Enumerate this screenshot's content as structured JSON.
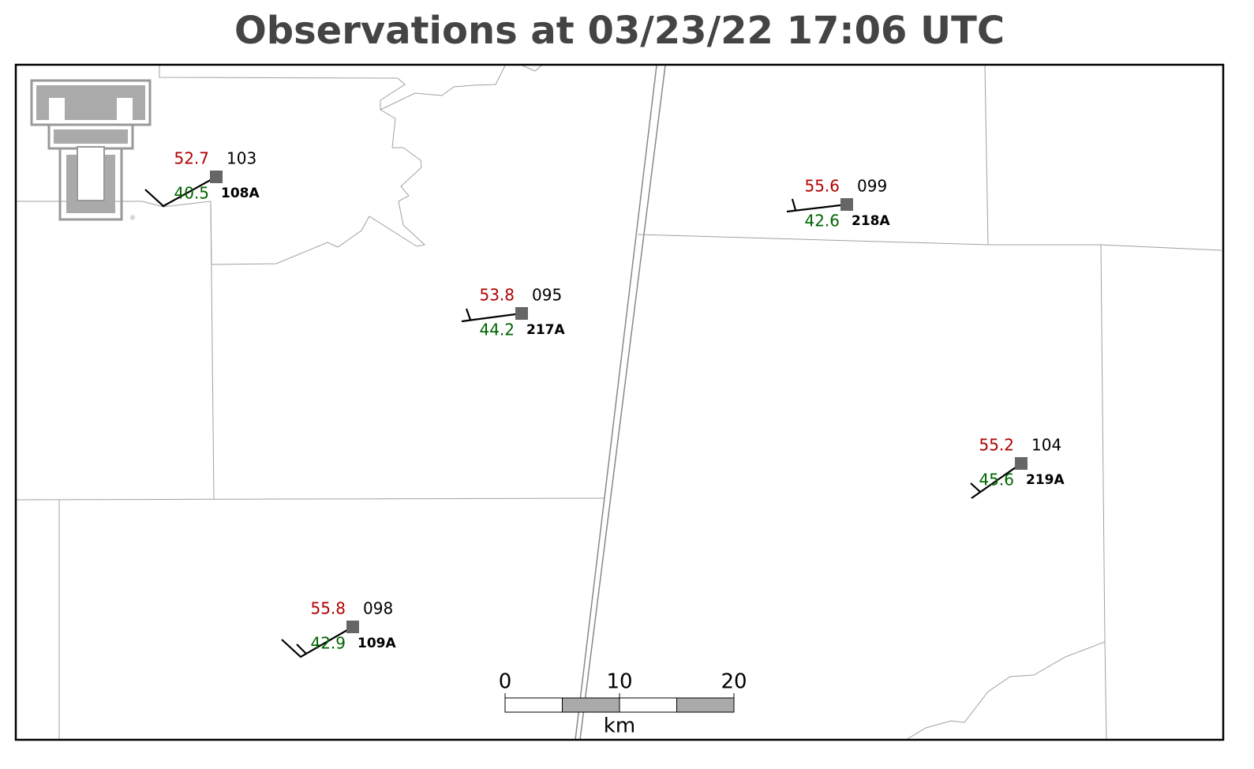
{
  "title": "Observations at 03/23/22 17:06 UTC",
  "stations": [
    {
      "id": "108A",
      "temperature": "52.7",
      "dewpoint": "40.5",
      "pressure": "103"
    },
    {
      "id": "217A",
      "temperature": "53.8",
      "dewpoint": "44.2",
      "pressure": "095"
    },
    {
      "id": "218A",
      "temperature": "55.6",
      "dewpoint": "42.6",
      "pressure": "099"
    },
    {
      "id": "219A",
      "temperature": "55.2",
      "dewpoint": "45.6",
      "pressure": "104"
    },
    {
      "id": "109A",
      "temperature": "55.8",
      "dewpoint": "42.9",
      "pressure": "098"
    }
  ],
  "scale_bar": {
    "ticks": [
      0,
      10,
      20
    ],
    "unit": "km"
  }
}
